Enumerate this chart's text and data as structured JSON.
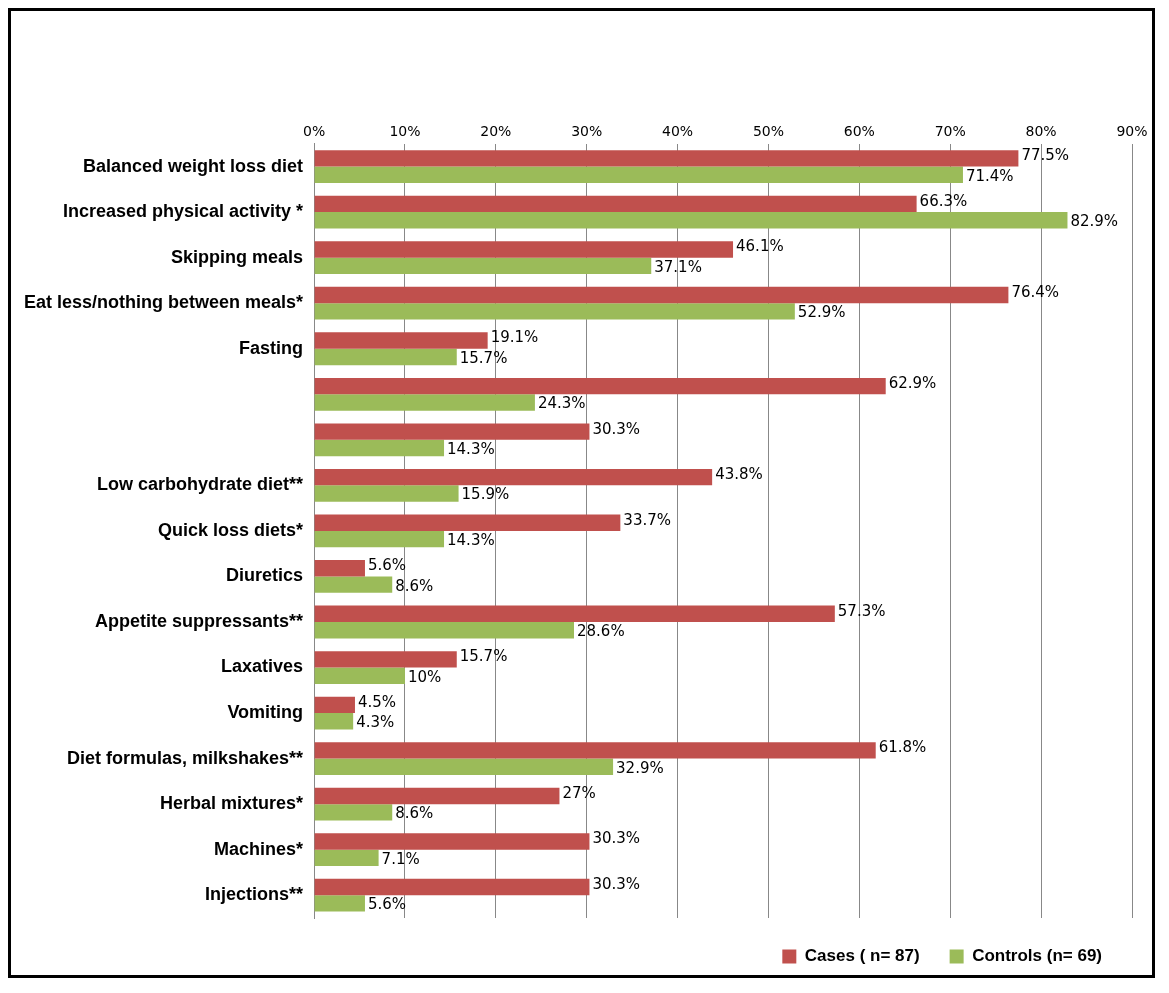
{
  "chart_data": {
    "type": "bar",
    "orientation": "horizontal",
    "categories": [
      "Balanced weight loss diet",
      "Increased physical activity *",
      "Skipping meals",
      "Eat less/nothing between meals*",
      "Fasting",
      null,
      null,
      "Low carbohydrate diet**",
      "Quick loss diets*",
      "Diuretics",
      "Appetite suppressants**",
      "Laxatives",
      "Vomiting",
      "Diet formulas, milkshakes**",
      "Herbal mixtures*",
      "Machines*",
      "Injections**"
    ],
    "series": [
      {
        "name": "Cases ( n= 87)",
        "color": "#c0504d",
        "values": [
          77.5,
          66.3,
          46.1,
          76.4,
          19.1,
          62.9,
          30.3,
          43.8,
          33.7,
          5.6,
          57.3,
          15.7,
          4.5,
          61.8,
          27,
          30.3,
          30.3
        ],
        "value_labels": [
          "77.5%",
          "66.3%",
          "46.1%",
          "76.4%",
          "19.1%",
          "62.9%",
          "30.3%",
          "43.8%",
          "33.7%",
          "5.6%",
          "57.3%",
          "15.7%",
          "4.5%",
          "61.8%",
          "27%",
          "30.3%",
          "30.3%"
        ]
      },
      {
        "name": "Controls (n= 69)",
        "color": "#9bbb59",
        "values": [
          71.4,
          82.9,
          37.1,
          52.9,
          15.7,
          24.3,
          14.3,
          15.9,
          14.3,
          8.6,
          28.6,
          10,
          4.3,
          32.9,
          8.6,
          7.1,
          5.6
        ],
        "value_labels": [
          "71.4%",
          "82.9%",
          "37.1%",
          "52.9%",
          "15.7%",
          "24.3%",
          "14.3%",
          "15.9%",
          "14.3%",
          "8.6%",
          "28.6%",
          "10%",
          "4.3%",
          "32.9%",
          "8.6%",
          "7.1%",
          "5.6%"
        ]
      }
    ],
    "xlim": [
      0,
      90
    ],
    "xticks": [
      {
        "value": 0,
        "label": "0%"
      },
      {
        "value": 10,
        "label": "10%"
      },
      {
        "value": 20,
        "label": "20%"
      },
      {
        "value": 30,
        "label": "30%"
      },
      {
        "value": 40,
        "label": "40%"
      },
      {
        "value": 50,
        "label": "50%"
      },
      {
        "value": 60,
        "label": "60%"
      },
      {
        "value": 70,
        "label": "70%"
      },
      {
        "value": 80,
        "label": "80%"
      },
      {
        "value": 90,
        "label": "90%"
      }
    ],
    "grid": "x",
    "legend": "bottom right"
  }
}
